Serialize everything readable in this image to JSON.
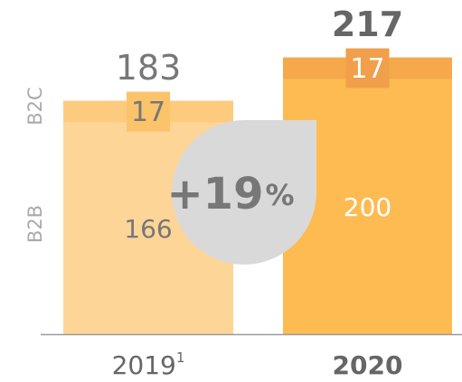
{
  "chart_data": {
    "type": "stacked_bar",
    "categories": [
      "2019",
      "2020"
    ],
    "category_notes": [
      "1",
      null
    ],
    "bold_category": [
      false,
      true
    ],
    "series": [
      {
        "name": "B2B",
        "colors": [
          "#fdd597",
          "#fdbb52"
        ],
        "label_colors": [
          "#777777",
          "#ffffff"
        ],
        "values": [
          166,
          200
        ]
      },
      {
        "name": "B2C",
        "colors": [
          "#fccb7e",
          "#f6a84c"
        ],
        "label_colors": [
          "#777777",
          "#ffffff"
        ],
        "box_colors": [
          "#fbc36a",
          "#f19f4a"
        ],
        "values": [
          17,
          17
        ]
      }
    ],
    "totals": [
      183,
      217
    ],
    "growth_value": "+19",
    "growth_unit": "%",
    "ylim": [
      0,
      262
    ]
  }
}
